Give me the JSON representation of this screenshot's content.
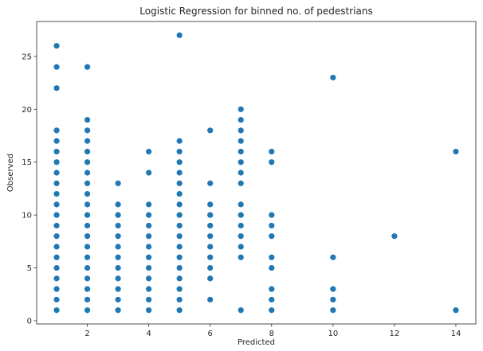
{
  "chart_data": {
    "type": "scatter",
    "title": "Logistic Regression for binned no. of pedestrians",
    "xlabel": "Predicted",
    "ylabel": "Observed",
    "xlim": [
      0.35,
      14.65
    ],
    "ylim": [
      -0.3,
      28.3
    ],
    "xticks": [
      2,
      4,
      6,
      8,
      10,
      12,
      14
    ],
    "yticks": [
      0,
      5,
      10,
      15,
      20,
      25
    ],
    "grid": false,
    "marker_color": "#1f77b4",
    "points_by_x": {
      "1": [
        1,
        2,
        3,
        4,
        5,
        6,
        7,
        8,
        9,
        10,
        11,
        12,
        13,
        14,
        15,
        16,
        17,
        18,
        22,
        24,
        26
      ],
      "2": [
        1,
        2,
        3,
        4,
        5,
        6,
        7,
        8,
        9,
        10,
        11,
        12,
        13,
        14,
        15,
        16,
        17,
        18,
        19,
        24
      ],
      "3": [
        1,
        2,
        3,
        4,
        5,
        6,
        7,
        8,
        9,
        10,
        11,
        13
      ],
      "4": [
        1,
        2,
        3,
        4,
        5,
        6,
        7,
        8,
        9,
        10,
        11,
        14,
        16
      ],
      "5": [
        1,
        2,
        3,
        4,
        5,
        6,
        7,
        8,
        9,
        10,
        11,
        12,
        13,
        14,
        15,
        16,
        17,
        27
      ],
      "6": [
        2,
        4,
        5,
        6,
        7,
        8,
        9,
        10,
        11,
        13,
        18
      ],
      "7": [
        1,
        6,
        7,
        8,
        9,
        10,
        11,
        13,
        14,
        15,
        16,
        17,
        18,
        19,
        20
      ],
      "8": [
        1,
        2,
        3,
        5,
        6,
        8,
        9,
        10,
        15,
        16
      ],
      "10": [
        1,
        2,
        3,
        6,
        23
      ],
      "12": [
        8
      ],
      "14": [
        1,
        16
      ]
    }
  }
}
